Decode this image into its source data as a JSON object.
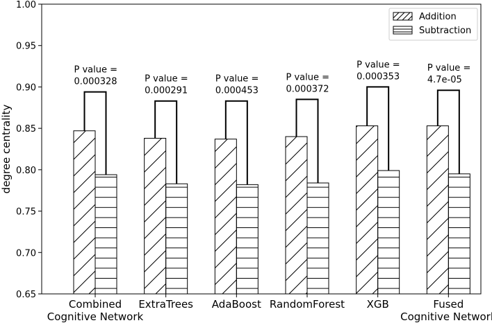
{
  "chart_data": {
    "type": "bar",
    "ylabel": "degree centrality",
    "ylim": [
      0.65,
      1.0
    ],
    "yticks": [
      "0.65",
      "0.70",
      "0.75",
      "0.80",
      "0.85",
      "0.90",
      "0.95",
      "1.00"
    ],
    "categories": [
      [
        "Combined",
        "Cognitive Network"
      ],
      [
        "ExtraTrees"
      ],
      [
        "AdaBoost"
      ],
      [
        "RandomForest"
      ],
      [
        "XGB"
      ],
      [
        "Fused",
        "Cognitive Network"
      ]
    ],
    "series": [
      {
        "name": "Addition",
        "hatch": "diagonal",
        "values": [
          0.847,
          0.838,
          0.837,
          0.84,
          0.853,
          0.853
        ]
      },
      {
        "name": "Subtraction",
        "hatch": "horizontal",
        "values": [
          0.794,
          0.783,
          0.782,
          0.784,
          0.799,
          0.795
        ]
      }
    ],
    "bracket_tops": [
      0.894,
      0.883,
      0.883,
      0.885,
      0.9,
      0.896
    ],
    "annotations": [
      [
        "P value =",
        "0.000328"
      ],
      [
        "P value =",
        "0.000291"
      ],
      [
        "P value =",
        "0.000453"
      ],
      [
        "P value =",
        "0.000372"
      ],
      [
        "P value =",
        "0.000353"
      ],
      [
        "P value =",
        "4.7e-05"
      ]
    ],
    "legend_position": "top-right",
    "grid": false
  }
}
